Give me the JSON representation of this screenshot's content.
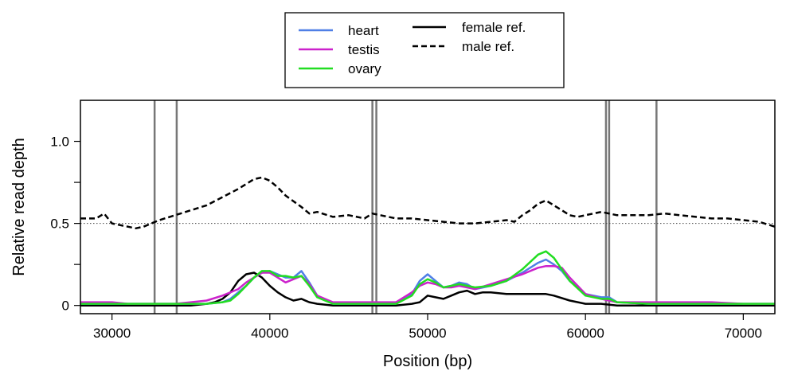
{
  "chart_data": {
    "type": "line",
    "xlabel": "Position (bp)",
    "ylabel": "Relative read depth",
    "xlim": [
      28000,
      72000
    ],
    "ylim": [
      -0.05,
      1.25
    ],
    "xticks": [
      30000,
      40000,
      50000,
      60000,
      70000
    ],
    "yticks": [
      0,
      0.5,
      1.0
    ],
    "ytick_labels": [
      "0",
      "0.5",
      "1.0"
    ],
    "reference_line": 0.5,
    "vertical_markers": [
      32700,
      34100,
      46500,
      46750,
      61300,
      61500,
      64500
    ],
    "legend_position": "top-center",
    "legend": [
      {
        "label": "heart",
        "color": "#4f7fe6",
        "style": "solid"
      },
      {
        "label": "testis",
        "color": "#cc22cc",
        "style": "solid"
      },
      {
        "label": "ovary",
        "color": "#22dd22",
        "style": "solid"
      },
      {
        "label": "female ref.",
        "color": "#000000",
        "style": "solid"
      },
      {
        "label": "male ref.",
        "color": "#000000",
        "style": "dashed"
      }
    ],
    "series": [
      {
        "name": "male ref.",
        "color": "#000000",
        "dash": "7,4",
        "x": [
          28000,
          29000,
          29500,
          30000,
          30500,
          31000,
          31500,
          32000,
          33000,
          34000,
          35000,
          36000,
          37000,
          38000,
          39000,
          39500,
          40000,
          40500,
          41000,
          42000,
          42500,
          43000,
          44000,
          45000,
          46000,
          46500,
          47000,
          48000,
          49000,
          50000,
          51000,
          52000,
          53000,
          54000,
          55000,
          55500,
          56000,
          56500,
          57000,
          57500,
          58000,
          58500,
          59000,
          59500,
          60000,
          60500,
          61000,
          62000,
          63000,
          64000,
          65000,
          66000,
          67000,
          68000,
          69000,
          70000,
          71000,
          72000
        ],
        "y": [
          0.53,
          0.53,
          0.56,
          0.5,
          0.49,
          0.48,
          0.47,
          0.48,
          0.52,
          0.55,
          0.58,
          0.61,
          0.66,
          0.71,
          0.77,
          0.78,
          0.76,
          0.72,
          0.67,
          0.6,
          0.56,
          0.57,
          0.54,
          0.55,
          0.53,
          0.56,
          0.55,
          0.53,
          0.53,
          0.52,
          0.51,
          0.5,
          0.5,
          0.51,
          0.52,
          0.51,
          0.55,
          0.58,
          0.62,
          0.64,
          0.61,
          0.58,
          0.55,
          0.54,
          0.55,
          0.56,
          0.57,
          0.55,
          0.55,
          0.55,
          0.56,
          0.55,
          0.54,
          0.53,
          0.53,
          0.52,
          0.51,
          0.48
        ]
      },
      {
        "name": "female ref.",
        "color": "#000000",
        "dash": "",
        "x": [
          28000,
          30000,
          32000,
          34000,
          35000,
          36000,
          36500,
          37000,
          37500,
          38000,
          38500,
          39000,
          39500,
          40000,
          40500,
          41000,
          41500,
          42000,
          42500,
          43000,
          44000,
          46000,
          48000,
          49000,
          49500,
          50000,
          50500,
          51000,
          51500,
          52000,
          52500,
          53000,
          53500,
          54000,
          55000,
          56000,
          57000,
          57500,
          58000,
          59000,
          60000,
          61000,
          62000,
          64000,
          66000,
          68000,
          70000,
          72000
        ],
        "y": [
          0.0,
          0.0,
          0.0,
          0.0,
          0.0,
          0.01,
          0.02,
          0.04,
          0.08,
          0.15,
          0.19,
          0.2,
          0.17,
          0.12,
          0.08,
          0.05,
          0.03,
          0.04,
          0.02,
          0.01,
          0.0,
          0.0,
          0.0,
          0.01,
          0.02,
          0.06,
          0.05,
          0.04,
          0.06,
          0.08,
          0.09,
          0.07,
          0.08,
          0.08,
          0.07,
          0.07,
          0.07,
          0.07,
          0.06,
          0.03,
          0.01,
          0.01,
          0.0,
          0.0,
          0.0,
          0.0,
          0.0,
          0.0
        ]
      },
      {
        "name": "heart",
        "color": "#4f7fe6",
        "dash": "",
        "x": [
          28000,
          30000,
          32000,
          34000,
          35000,
          36000,
          37000,
          37500,
          38000,
          38500,
          39000,
          39500,
          40000,
          40500,
          41000,
          41500,
          42000,
          42500,
          43000,
          44000,
          46000,
          48000,
          49000,
          49500,
          50000,
          50500,
          51000,
          51500,
          52000,
          52500,
          53000,
          54000,
          55000,
          56000,
          57000,
          57500,
          58000,
          58500,
          59000,
          60000,
          61000,
          61500,
          62000,
          64000,
          66000,
          68000,
          70000,
          72000
        ],
        "y": [
          0.01,
          0.01,
          0.01,
          0.01,
          0.01,
          0.01,
          0.02,
          0.04,
          0.08,
          0.12,
          0.17,
          0.2,
          0.21,
          0.19,
          0.17,
          0.17,
          0.21,
          0.14,
          0.06,
          0.01,
          0.01,
          0.01,
          0.07,
          0.15,
          0.19,
          0.15,
          0.11,
          0.12,
          0.14,
          0.13,
          0.1,
          0.12,
          0.15,
          0.2,
          0.26,
          0.28,
          0.25,
          0.21,
          0.15,
          0.07,
          0.05,
          0.05,
          0.02,
          0.01,
          0.01,
          0.01,
          0.01,
          0.01
        ]
      },
      {
        "name": "testis",
        "color": "#cc22cc",
        "dash": "",
        "x": [
          28000,
          29000,
          30000,
          31000,
          32000,
          33000,
          34000,
          35000,
          36000,
          37000,
          38000,
          38500,
          39000,
          39500,
          40000,
          40500,
          41000,
          41500,
          42000,
          42500,
          43000,
          44000,
          46000,
          48000,
          49000,
          49500,
          50000,
          50500,
          51000,
          51500,
          52000,
          52500,
          53000,
          54000,
          55000,
          56000,
          57000,
          57500,
          58000,
          58500,
          59000,
          60000,
          61000,
          62000,
          64000,
          66000,
          68000,
          70000,
          72000
        ],
        "y": [
          0.02,
          0.02,
          0.02,
          0.01,
          0.01,
          0.01,
          0.01,
          0.02,
          0.03,
          0.06,
          0.1,
          0.14,
          0.17,
          0.2,
          0.2,
          0.17,
          0.14,
          0.16,
          0.18,
          0.13,
          0.06,
          0.02,
          0.02,
          0.02,
          0.08,
          0.12,
          0.14,
          0.13,
          0.11,
          0.11,
          0.12,
          0.11,
          0.1,
          0.13,
          0.16,
          0.19,
          0.23,
          0.24,
          0.24,
          0.23,
          0.17,
          0.07,
          0.04,
          0.02,
          0.02,
          0.02,
          0.02,
          0.01,
          0.01
        ]
      },
      {
        "name": "ovary",
        "color": "#22dd22",
        "dash": "",
        "x": [
          28000,
          30000,
          32000,
          34000,
          35000,
          36000,
          37000,
          37500,
          38000,
          38500,
          39000,
          39500,
          40000,
          40500,
          41000,
          41500,
          42000,
          42500,
          43000,
          44000,
          46000,
          48000,
          49000,
          49500,
          50000,
          50500,
          51000,
          51500,
          52000,
          52500,
          53000,
          54000,
          55000,
          56000,
          57000,
          57500,
          58000,
          58500,
          59000,
          60000,
          61000,
          61500,
          62000,
          64000,
          66000,
          68000,
          70000,
          72000
        ],
        "y": [
          0.01,
          0.01,
          0.01,
          0.01,
          0.01,
          0.01,
          0.02,
          0.03,
          0.07,
          0.12,
          0.17,
          0.21,
          0.21,
          0.18,
          0.18,
          0.17,
          0.18,
          0.12,
          0.05,
          0.01,
          0.01,
          0.01,
          0.06,
          0.13,
          0.16,
          0.14,
          0.11,
          0.12,
          0.13,
          0.12,
          0.11,
          0.12,
          0.15,
          0.22,
          0.31,
          0.33,
          0.29,
          0.22,
          0.15,
          0.06,
          0.04,
          0.04,
          0.02,
          0.01,
          0.01,
          0.01,
          0.01,
          0.01
        ]
      }
    ]
  }
}
